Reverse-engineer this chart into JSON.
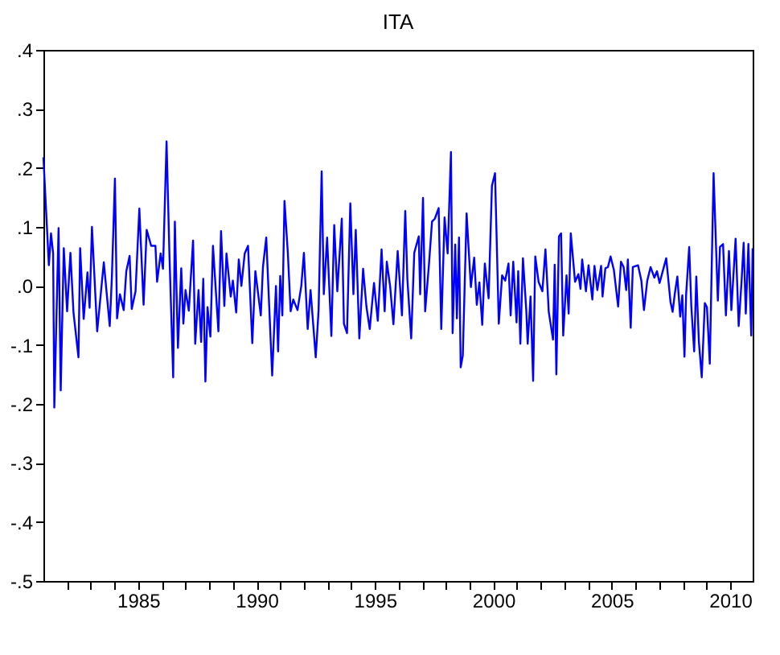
{
  "chart_data": {
    "type": "line",
    "title": "ITA",
    "xlim": [
      1981.0,
      2010.95
    ],
    "xticks": [
      {
        "value": 1982,
        "label": null
      },
      {
        "value": 1983,
        "label": null
      },
      {
        "value": 1984,
        "label": null
      },
      1985,
      {
        "value": 1986,
        "label": null
      },
      {
        "value": 1987,
        "label": null
      },
      {
        "value": 1988,
        "label": null
      },
      {
        "value": 1989,
        "label": null
      },
      1990,
      {
        "value": 1991,
        "label": null
      },
      {
        "value": 1992,
        "label": null
      },
      {
        "value": 1993,
        "label": null
      },
      {
        "value": 1994,
        "label": null
      },
      1995,
      {
        "value": 1996,
        "label": null
      },
      {
        "value": 1997,
        "label": null
      },
      {
        "value": 1998,
        "label": null
      },
      {
        "value": 1999,
        "label": null
      },
      2000,
      {
        "value": 2001,
        "label": null
      },
      {
        "value": 2002,
        "label": null
      },
      {
        "value": 2003,
        "label": null
      },
      {
        "value": 2004,
        "label": null
      },
      2005,
      {
        "value": 2006,
        "label": null
      },
      {
        "value": 2007,
        "label": null
      },
      {
        "value": 2008,
        "label": null
      },
      {
        "value": 2009,
        "label": null
      },
      2010
    ],
    "ylim": [
      -0.5,
      0.4
    ],
    "yticks": [
      {
        "value": -0.5,
        "label": "-.5"
      },
      {
        "value": -0.4,
        "label": "-.4"
      },
      {
        "value": -0.3,
        "label": "-.3"
      },
      {
        "value": -0.2,
        "label": "-.2"
      },
      {
        "value": -0.1,
        "label": "-.1"
      },
      {
        "value": 0.0,
        "label": ".0"
      },
      {
        "value": 0.1,
        "label": ".1"
      },
      {
        "value": 0.2,
        "label": ".2"
      },
      {
        "value": 0.3,
        "label": ".3"
      },
      {
        "value": 0.4,
        "label": ".4"
      }
    ],
    "grid": false,
    "marker": "none",
    "line_style": "solid",
    "series": [
      {
        "color": "#0000ff",
        "x": [
          1981.0,
          1981.23,
          1981.32,
          1981.41,
          1981.46,
          1981.64,
          1981.73,
          1981.86,
          1982.0,
          1982.14,
          1982.27,
          1982.48,
          1982.55,
          1982.7,
          1982.86,
          1982.95,
          1983.05,
          1983.27,
          1983.55,
          1983.8,
          1983.89,
          1984.02,
          1984.11,
          1984.23,
          1984.39,
          1984.5,
          1984.64,
          1984.73,
          1984.89,
          1985.05,
          1985.23,
          1985.36,
          1985.55,
          1985.73,
          1985.8,
          1985.95,
          1986.05,
          1986.2,
          1986.32,
          1986.48,
          1986.55,
          1986.68,
          1986.82,
          1986.91,
          1987.0,
          1987.14,
          1987.32,
          1987.41,
          1987.55,
          1987.66,
          1987.75,
          1987.84,
          1987.93,
          1988.05,
          1988.16,
          1988.39,
          1988.5,
          1988.64,
          1988.73,
          1988.91,
          1989.0,
          1989.14,
          1989.25,
          1989.36,
          1989.5,
          1989.64,
          1989.82,
          1989.95,
          1990.18,
          1990.27,
          1990.41,
          1990.66,
          1990.82,
          1990.91,
          1991.0,
          1991.09,
          1991.18,
          1991.32,
          1991.44,
          1991.55,
          1991.73,
          1991.89,
          1992.0,
          1992.16,
          1992.28,
          1992.5,
          1992.62,
          1992.75,
          1992.84,
          1992.98,
          1993.16,
          1993.28,
          1993.41,
          1993.6,
          1993.69,
          1993.82,
          1993.96,
          1994.09,
          1994.19,
          1994.34,
          1994.5,
          1994.64,
          1994.78,
          1994.96,
          1995.12,
          1995.28,
          1995.41,
          1995.5,
          1995.64,
          1995.78,
          1995.96,
          1996.14,
          1996.28,
          1996.37,
          1996.53,
          1996.66,
          1996.85,
          1996.91,
          1997.03,
          1997.12,
          1997.28,
          1997.41,
          1997.53,
          1997.69,
          1997.8,
          1997.94,
          1998.07,
          1998.21,
          1998.28,
          1998.39,
          1998.46,
          1998.55,
          1998.62,
          1998.71,
          1998.87,
          1999.05,
          1999.19,
          1999.3,
          1999.41,
          1999.53,
          1999.64,
          1999.8,
          1999.94,
          2000.07,
          2000.23,
          2000.37,
          2000.5,
          2000.64,
          2000.73,
          2000.84,
          2000.98,
          2001.05,
          2001.14,
          2001.25,
          2001.39,
          2001.45,
          2001.57,
          2001.68,
          2001.77,
          2001.91,
          2002.07,
          2002.2,
          2002.34,
          2002.52,
          2002.59,
          2002.66,
          2002.77,
          2002.86,
          2002.95,
          2003.09,
          2003.18,
          2003.27,
          2003.45,
          2003.59,
          2003.68,
          2003.75,
          2003.91,
          2004.02,
          2004.18,
          2004.27,
          2004.39,
          2004.55,
          2004.61,
          2004.73,
          2004.84,
          2004.95,
          2005.09,
          2005.27,
          2005.39,
          2005.5,
          2005.61,
          2005.68,
          2005.8,
          2005.89,
          2006.11,
          2006.25,
          2006.36,
          2006.5,
          2006.64,
          2006.8,
          2006.91,
          2007.02,
          2007.3,
          2007.48,
          2007.57,
          2007.66,
          2007.77,
          2007.89,
          2007.98,
          2008.07,
          2008.14,
          2008.27,
          2008.36,
          2008.48,
          2008.57,
          2008.68,
          2008.8,
          2008.93,
          2009.02,
          2009.14,
          2009.3,
          2009.48,
          2009.57,
          2009.7,
          2009.82,
          2009.95,
          2010.05,
          2010.23,
          2010.36,
          2010.48,
          2010.57,
          2010.66,
          2010.77,
          2010.89,
          2010.95
        ],
        "values": [
          0.218,
          0.035,
          0.089,
          0.055,
          -0.206,
          0.098,
          -0.177,
          0.064,
          -0.043,
          0.056,
          -0.045,
          -0.121,
          0.064,
          -0.056,
          0.023,
          -0.037,
          0.1,
          -0.077,
          0.04,
          -0.068,
          0.014,
          0.182,
          -0.055,
          -0.014,
          -0.041,
          0.025,
          0.051,
          -0.039,
          -0.009,
          0.131,
          -0.032,
          0.095,
          0.068,
          0.068,
          0.007,
          0.055,
          0.029,
          0.245,
          0.055,
          -0.155,
          0.109,
          -0.105,
          0.03,
          -0.064,
          -0.007,
          -0.042,
          0.077,
          -0.098,
          -0.007,
          -0.095,
          0.012,
          -0.162,
          -0.036,
          -0.086,
          0.068,
          -0.077,
          0.093,
          -0.034,
          0.055,
          -0.018,
          0.009,
          -0.045,
          0.045,
          0.0,
          0.055,
          0.068,
          -0.097,
          0.025,
          -0.05,
          0.032,
          0.082,
          -0.152,
          0.0,
          -0.111,
          0.017,
          -0.05,
          0.144,
          0.057,
          -0.043,
          -0.023,
          -0.041,
          0.0,
          0.056,
          -0.073,
          -0.007,
          -0.121,
          -0.041,
          0.194,
          -0.014,
          0.082,
          -0.085,
          0.103,
          -0.009,
          0.114,
          -0.064,
          -0.08,
          0.14,
          -0.014,
          0.095,
          -0.089,
          0.029,
          -0.035,
          -0.073,
          0.005,
          -0.059,
          0.062,
          -0.043,
          0.041,
          0.0,
          -0.065,
          0.059,
          -0.05,
          0.127,
          0.011,
          -0.089,
          0.056,
          0.084,
          -0.014,
          0.149,
          -0.043,
          0.036,
          0.109,
          0.114,
          0.132,
          -0.073,
          0.116,
          0.055,
          0.227,
          -0.08,
          0.07,
          -0.055,
          0.082,
          -0.138,
          -0.118,
          0.123,
          -0.002,
          0.048,
          -0.032,
          0.006,
          -0.066,
          0.038,
          -0.021,
          0.17,
          0.191,
          -0.064,
          0.018,
          0.009,
          0.038,
          -0.05,
          0.041,
          -0.062,
          0.025,
          -0.098,
          0.047,
          -0.041,
          -0.098,
          -0.018,
          -0.161,
          0.05,
          0.007,
          -0.009,
          0.062,
          -0.044,
          -0.091,
          0.036,
          -0.15,
          0.084,
          0.089,
          -0.084,
          0.018,
          -0.047,
          0.089,
          0.007,
          0.02,
          -0.005,
          0.045,
          -0.009,
          0.035,
          -0.023,
          0.034,
          -0.007,
          0.034,
          -0.018,
          0.03,
          0.032,
          0.05,
          0.027,
          -0.035,
          0.041,
          0.032,
          -0.007,
          0.045,
          -0.071,
          0.032,
          0.035,
          0.009,
          -0.041,
          0.009,
          0.032,
          0.014,
          0.025,
          0.005,
          0.047,
          -0.027,
          -0.044,
          -0.014,
          0.016,
          -0.052,
          -0.016,
          -0.12,
          -0.015,
          0.066,
          -0.035,
          -0.111,
          0.016,
          -0.095,
          -0.155,
          -0.029,
          -0.036,
          -0.132,
          0.191,
          -0.025,
          0.066,
          0.071,
          -0.05,
          0.059,
          -0.041,
          0.08,
          -0.068,
          0.007,
          0.073,
          -0.047,
          0.071,
          -0.084,
          0.064
        ]
      }
    ]
  }
}
